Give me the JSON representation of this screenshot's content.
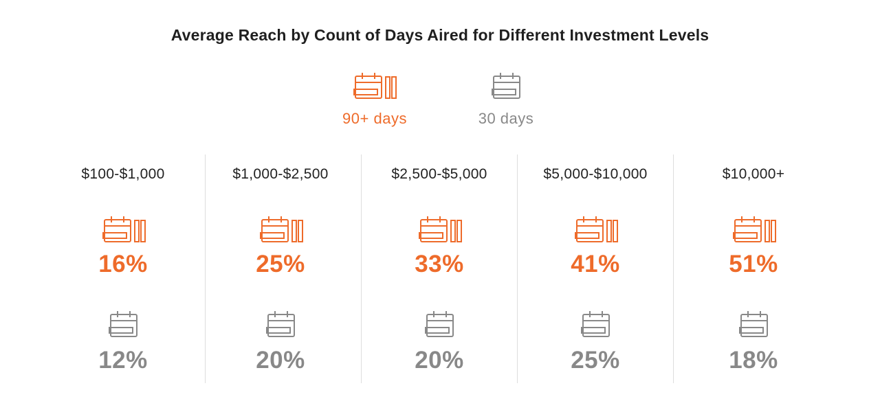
{
  "colors": {
    "accent": "#EE6B2A",
    "muted": "#888888",
    "text": "#1f1f1f"
  },
  "icons": {
    "series_90": "calendar-stack-icon",
    "series_30": "calendar-icon"
  },
  "chart_data": {
    "type": "table",
    "title": "Average Reach by Count of Days Aired for Different Investment Levels",
    "legend": [
      "90+ days",
      "30 days"
    ],
    "legend_position": "top-center",
    "categories": [
      "$100-$1,000",
      "$1,000-$2,500",
      "$2,500-$5,000",
      "$5,000-$10,000",
      "$10,000+"
    ],
    "series": [
      {
        "name": "90+ days",
        "values": [
          "16%",
          "25%",
          "33%",
          "41%",
          "51%"
        ]
      },
      {
        "name": "30 days",
        "values": [
          "12%",
          "20%",
          "20%",
          "25%",
          "18%"
        ]
      }
    ]
  }
}
